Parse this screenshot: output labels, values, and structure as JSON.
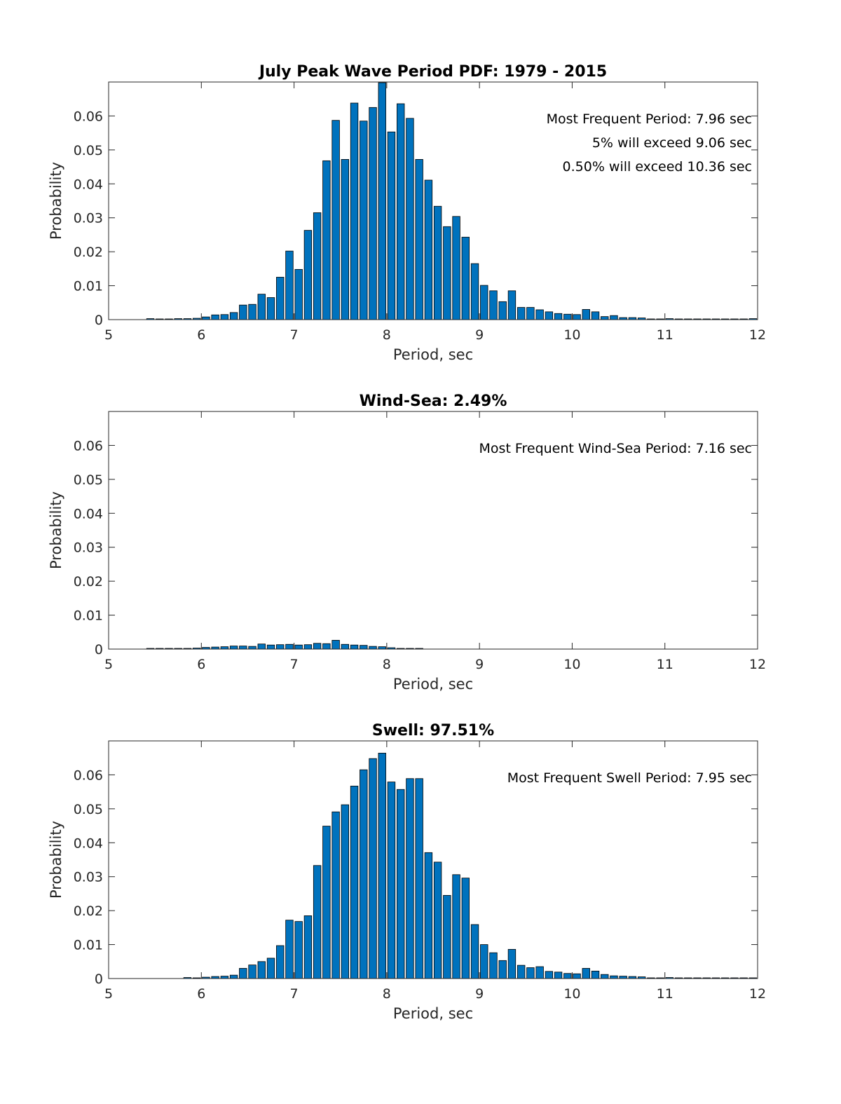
{
  "colors": {
    "bar_fill": "#0072BD",
    "bar_edge": "#000000",
    "axis": "#262626"
  },
  "chart_data": [
    {
      "type": "bar",
      "title": "July Peak Wave Period PDF: 1979 - 2015",
      "xlabel": "Period, sec",
      "ylabel": "Probability",
      "xlim": [
        5,
        12
      ],
      "ylim": [
        0,
        0.07
      ],
      "xticks": [
        "5",
        "6",
        "7",
        "8",
        "9",
        "10",
        "11",
        "12"
      ],
      "yticks": [
        "0",
        "0.01",
        "0.02",
        "0.03",
        "0.04",
        "0.05",
        "0.06"
      ],
      "grid": false,
      "annotations": [
        "Most Frequent Period: 7.96 sec",
        "5% will exceed 9.06 sec",
        "0.50% will exceed 10.36 sec"
      ],
      "bin_width": 0.1,
      "x": [
        5.45,
        5.55,
        5.65,
        5.75,
        5.85,
        5.95,
        6.05,
        6.15,
        6.25,
        6.35,
        6.45,
        6.55,
        6.65,
        6.75,
        6.85,
        6.95,
        7.05,
        7.15,
        7.25,
        7.35,
        7.45,
        7.55,
        7.65,
        7.75,
        7.85,
        7.95,
        8.05,
        8.15,
        8.25,
        8.35,
        8.45,
        8.55,
        8.65,
        8.75,
        8.85,
        8.95,
        9.05,
        9.15,
        9.25,
        9.35,
        9.45,
        9.55,
        9.65,
        9.75,
        9.85,
        9.95,
        10.05,
        10.15,
        10.25,
        10.35,
        10.45,
        10.55,
        10.65,
        10.75,
        10.85,
        10.95,
        11.05,
        11.15,
        11.25,
        11.35,
        11.45,
        11.55,
        11.65,
        11.75,
        11.85,
        11.95
      ],
      "values": [
        0.0003,
        0.0001,
        0.0001,
        0.0003,
        0.0003,
        0.0004,
        0.0008,
        0.0014,
        0.0015,
        0.0021,
        0.0043,
        0.0045,
        0.0075,
        0.0065,
        0.0125,
        0.0202,
        0.0148,
        0.0263,
        0.0315,
        0.0468,
        0.0587,
        0.0472,
        0.0638,
        0.0585,
        0.0625,
        0.0698,
        0.0553,
        0.0636,
        0.0593,
        0.0472,
        0.0411,
        0.0334,
        0.0274,
        0.0304,
        0.0243,
        0.0165,
        0.0101,
        0.0085,
        0.0053,
        0.0085,
        0.0036,
        0.0036,
        0.0029,
        0.0023,
        0.0018,
        0.0016,
        0.0015,
        0.003,
        0.0023,
        0.0009,
        0.0012,
        0.0006,
        0.0006,
        0.0005,
        0.0002,
        0.0002,
        0.0003,
        0.0001,
        0.0001,
        0.0001,
        0.0001,
        0.0001,
        0.0001,
        0.0001,
        0.0001,
        0.0003
      ]
    },
    {
      "type": "bar",
      "title": "Wind-Sea: 2.49%",
      "xlabel": "Period, sec",
      "ylabel": "Probability",
      "xlim": [
        5,
        12
      ],
      "ylim": [
        0,
        0.07
      ],
      "xticks": [
        "5",
        "6",
        "7",
        "8",
        "9",
        "10",
        "11",
        "12"
      ],
      "yticks": [
        "0",
        "0.01",
        "0.02",
        "0.03",
        "0.04",
        "0.05",
        "0.06"
      ],
      "grid": false,
      "annotations": [
        "Most Frequent Wind-Sea Period: 7.16 sec"
      ],
      "bin_width": 0.1,
      "x": [
        5.45,
        5.55,
        5.65,
        5.75,
        5.85,
        5.95,
        6.05,
        6.15,
        6.25,
        6.35,
        6.45,
        6.55,
        6.65,
        6.75,
        6.85,
        6.95,
        7.05,
        7.15,
        7.25,
        7.35,
        7.45,
        7.55,
        7.65,
        7.75,
        7.85,
        7.95,
        8.05,
        8.15,
        8.25,
        8.35
      ],
      "values": [
        0.0002,
        0.0001,
        0.0001,
        0.0001,
        0.0002,
        0.0003,
        0.0005,
        0.0006,
        0.0007,
        0.0009,
        0.0009,
        0.0008,
        0.0015,
        0.0012,
        0.0013,
        0.0014,
        0.0012,
        0.0013,
        0.0017,
        0.0016,
        0.0026,
        0.0014,
        0.0012,
        0.0011,
        0.0008,
        0.0007,
        0.0004,
        0.0001,
        0.0001,
        0.0002
      ]
    },
    {
      "type": "bar",
      "title": "Swell: 97.51%",
      "xlabel": "Period, sec",
      "ylabel": "Probability",
      "xlim": [
        5,
        12
      ],
      "ylim": [
        0,
        0.07
      ],
      "xticks": [
        "5",
        "6",
        "7",
        "8",
        "9",
        "10",
        "11",
        "12"
      ],
      "yticks": [
        "0",
        "0.01",
        "0.02",
        "0.03",
        "0.04",
        "0.05",
        "0.06"
      ],
      "grid": false,
      "annotations": [
        "Most Frequent Swell Period: 7.95 sec"
      ],
      "bin_width": 0.1,
      "x": [
        5.85,
        5.95,
        6.05,
        6.15,
        6.25,
        6.35,
        6.45,
        6.55,
        6.65,
        6.75,
        6.85,
        6.95,
        7.05,
        7.15,
        7.25,
        7.35,
        7.45,
        7.55,
        7.65,
        7.75,
        7.85,
        7.95,
        8.05,
        8.15,
        8.25,
        8.35,
        8.45,
        8.55,
        8.65,
        8.75,
        8.85,
        8.95,
        9.05,
        9.15,
        9.25,
        9.35,
        9.45,
        9.55,
        9.65,
        9.75,
        9.85,
        9.95,
        10.05,
        10.15,
        10.25,
        10.35,
        10.45,
        10.55,
        10.65,
        10.75,
        10.85,
        10.95,
        11.05,
        11.15,
        11.25,
        11.35,
        11.45,
        11.55,
        11.65,
        11.75,
        11.85,
        11.95
      ],
      "values": [
        0.0003,
        0.0001,
        0.0004,
        0.0006,
        0.0007,
        0.001,
        0.003,
        0.004,
        0.005,
        0.006,
        0.0097,
        0.0172,
        0.0168,
        0.0185,
        0.0333,
        0.0449,
        0.0491,
        0.0512,
        0.0567,
        0.0615,
        0.0648,
        0.0664,
        0.0579,
        0.0557,
        0.0589,
        0.0589,
        0.0371,
        0.0343,
        0.0245,
        0.0306,
        0.0296,
        0.0159,
        0.01,
        0.0076,
        0.0053,
        0.0086,
        0.0039,
        0.0032,
        0.0035,
        0.0021,
        0.0019,
        0.0015,
        0.0014,
        0.003,
        0.0022,
        0.0012,
        0.0008,
        0.0007,
        0.0006,
        0.0005,
        0.0002,
        0.0002,
        0.0003,
        0.0001,
        0.0001,
        0.0001,
        0.0001,
        0.0001,
        0.0001,
        0.0001,
        0.0001,
        0.0002
      ]
    }
  ]
}
